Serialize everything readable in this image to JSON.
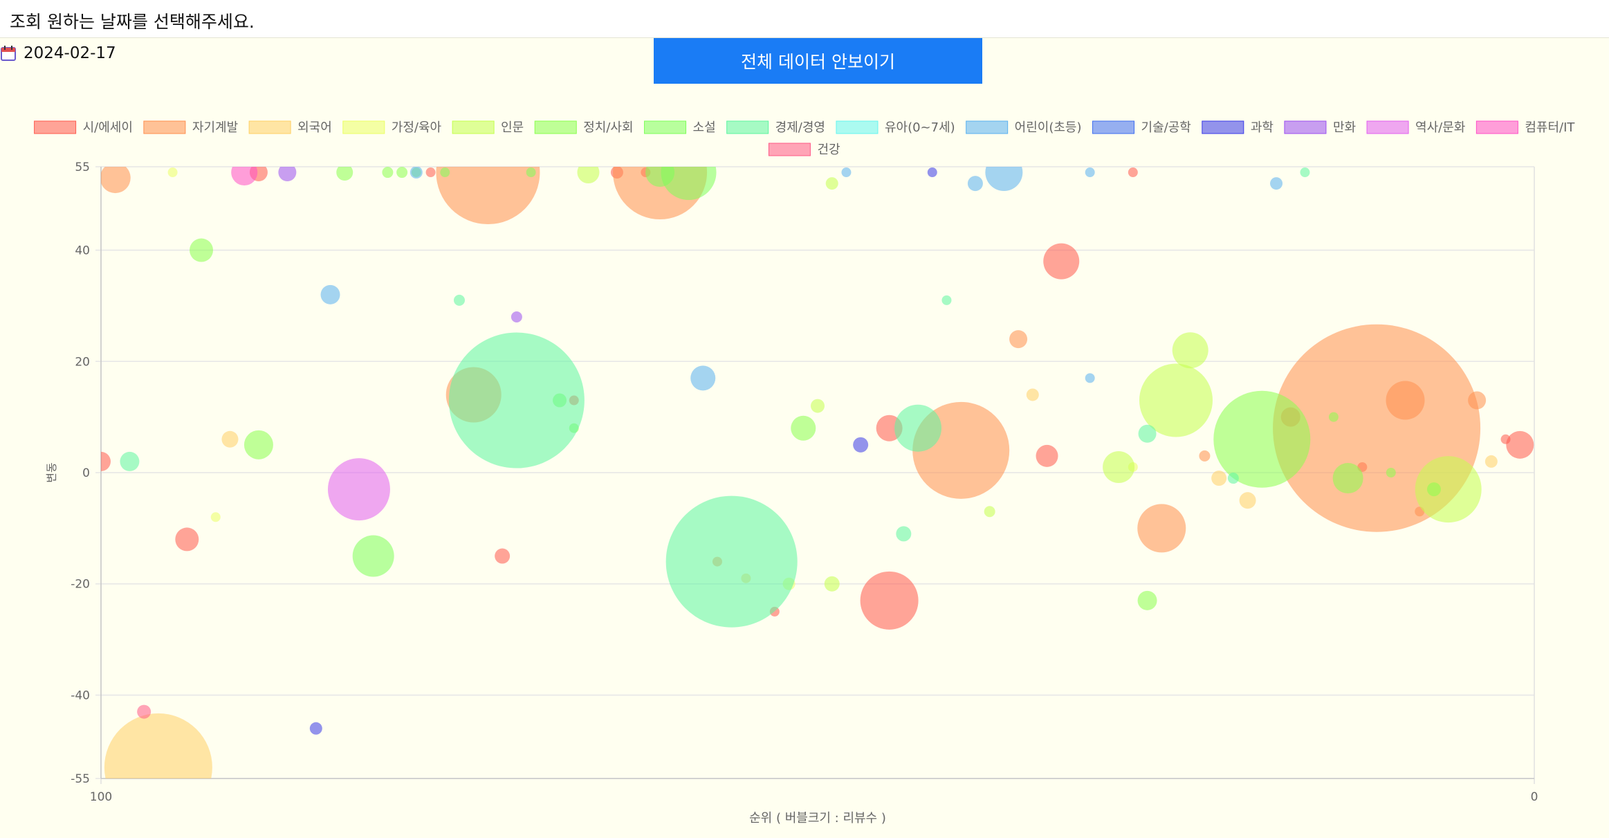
{
  "header": {
    "prompt": "조회 원하는 날짜를 선택해주세요."
  },
  "date_picker": {
    "value": "2024-02-17",
    "icon": "calendar-icon"
  },
  "toggle_button": {
    "label": "전체 데이터 안보이기"
  },
  "chart_data": {
    "type": "bubble",
    "xlabel": "순위 ( 버블크기 : 리뷰수 )",
    "ylabel": "변동",
    "xlim": [
      100,
      0
    ],
    "ylim": [
      -55,
      55
    ],
    "x_ticks": [
      100,
      0
    ],
    "y_ticks": [
      55,
      40,
      20,
      0,
      -20,
      -40,
      -55
    ],
    "grid": true,
    "legend_position": "top",
    "series": [
      {
        "name": "시/에세이",
        "color": "#ff5a4e",
        "points": [
          {
            "x": 100,
            "y": 2,
            "r": 14
          },
          {
            "x": 94,
            "y": -12,
            "r": 17
          },
          {
            "x": 89,
            "y": 54,
            "r": 13
          },
          {
            "x": 77,
            "y": 54,
            "r": 7
          },
          {
            "x": 72,
            "y": -15,
            "r": 11
          },
          {
            "x": 67,
            "y": 13,
            "r": 7
          },
          {
            "x": 64,
            "y": 54,
            "r": 9
          },
          {
            "x": 62,
            "y": 54,
            "r": 7
          },
          {
            "x": 53,
            "y": -25,
            "r": 7
          },
          {
            "x": 45,
            "y": -23,
            "r": 42
          },
          {
            "x": 45,
            "y": 8,
            "r": 19
          },
          {
            "x": 34,
            "y": 3,
            "r": 16
          },
          {
            "x": 33,
            "y": 38,
            "r": 26
          },
          {
            "x": 28,
            "y": 54,
            "r": 7
          },
          {
            "x": 17,
            "y": 10,
            "r": 14
          },
          {
            "x": 12,
            "y": 1,
            "r": 7
          },
          {
            "x": 2,
            "y": 6,
            "r": 7
          },
          {
            "x": 1,
            "y": 5,
            "r": 20
          }
        ]
      },
      {
        "name": "자기계발",
        "color": "#ff8f4f",
        "points": [
          {
            "x": 99,
            "y": 53,
            "r": 22
          },
          {
            "x": 74,
            "y": 14,
            "r": 40
          },
          {
            "x": 73,
            "y": 54,
            "r": 75
          },
          {
            "x": 61,
            "y": 54,
            "r": 68
          },
          {
            "x": 57,
            "y": -16,
            "r": 7
          },
          {
            "x": 40,
            "y": 4,
            "r": 70
          },
          {
            "x": 36,
            "y": 24,
            "r": 13
          },
          {
            "x": 26,
            "y": -10,
            "r": 35
          },
          {
            "x": 23,
            "y": 3,
            "r": 8
          },
          {
            "x": 11,
            "y": 8,
            "r": 150
          },
          {
            "x": 9,
            "y": 13,
            "r": 28
          },
          {
            "x": 8,
            "y": -7,
            "r": 7
          },
          {
            "x": 4,
            "y": 13,
            "r": 13
          }
        ]
      },
      {
        "name": "외국어",
        "color": "#ffd066",
        "points": [
          {
            "x": 96,
            "y": -53,
            "r": 78
          },
          {
            "x": 91,
            "y": 6,
            "r": 12
          },
          {
            "x": 55,
            "y": -19,
            "r": 7
          },
          {
            "x": 35,
            "y": 14,
            "r": 9
          },
          {
            "x": 22,
            "y": -1,
            "r": 11
          },
          {
            "x": 20,
            "y": -5,
            "r": 12
          },
          {
            "x": 3,
            "y": 2,
            "r": 9
          }
        ]
      },
      {
        "name": "가정/육아",
        "color": "#ebff66",
        "points": [
          {
            "x": 95,
            "y": 54,
            "r": 7
          },
          {
            "x": 92,
            "y": -8,
            "r": 7
          },
          {
            "x": 52,
            "y": -20,
            "r": 9
          },
          {
            "x": 28,
            "y": 1,
            "r": 7
          }
        ]
      },
      {
        "name": "인문",
        "color": "#c4ff4f",
        "points": [
          {
            "x": 66,
            "y": 54,
            "r": 16
          },
          {
            "x": 49,
            "y": -20,
            "r": 11
          },
          {
            "x": 50,
            "y": 12,
            "r": 10
          },
          {
            "x": 49,
            "y": 52,
            "r": 9
          },
          {
            "x": 38,
            "y": -7,
            "r": 8
          },
          {
            "x": 29,
            "y": 1,
            "r": 23
          },
          {
            "x": 25,
            "y": 13,
            "r": 53
          },
          {
            "x": 24,
            "y": 22,
            "r": 26
          },
          {
            "x": 6,
            "y": -3,
            "r": 48
          }
        ]
      },
      {
        "name": "정치/사회",
        "color": "#8bff4f",
        "points": [
          {
            "x": 93,
            "y": 40,
            "r": 17
          },
          {
            "x": 89,
            "y": 5,
            "r": 21
          },
          {
            "x": 83,
            "y": 54,
            "r": 12
          },
          {
            "x": 80,
            "y": 54,
            "r": 8
          },
          {
            "x": 79,
            "y": 54,
            "r": 8
          },
          {
            "x": 78,
            "y": 54,
            "r": 7
          },
          {
            "x": 67,
            "y": 8,
            "r": 7
          },
          {
            "x": 51,
            "y": 8,
            "r": 18
          },
          {
            "x": 27,
            "y": -23,
            "r": 14
          },
          {
            "x": 19,
            "y": 6,
            "r": 70
          },
          {
            "x": 14,
            "y": 10,
            "r": 7
          },
          {
            "x": 13,
            "y": -1,
            "r": 22
          },
          {
            "x": 10,
            "y": 0,
            "r": 7
          },
          {
            "x": 7,
            "y": -3,
            "r": 10
          }
        ]
      },
      {
        "name": "소설",
        "color": "#7dff5a",
        "points": [
          {
            "x": 81,
            "y": -15,
            "r": 30
          },
          {
            "x": 68,
            "y": 13,
            "r": 10
          },
          {
            "x": 61,
            "y": 54,
            "r": 21
          },
          {
            "x": 59,
            "y": 54,
            "r": 40
          },
          {
            "x": 76,
            "y": 54,
            "r": 7
          },
          {
            "x": 70,
            "y": 54,
            "r": 7
          }
        ]
      },
      {
        "name": "경제/경영",
        "color": "#5cf5a0",
        "points": [
          {
            "x": 98,
            "y": 2,
            "r": 14
          },
          {
            "x": 75,
            "y": 31,
            "r": 8
          },
          {
            "x": 71,
            "y": 13,
            "r": 98
          },
          {
            "x": 56,
            "y": -16,
            "r": 95
          },
          {
            "x": 44,
            "y": -11,
            "r": 11
          },
          {
            "x": 43,
            "y": 8,
            "r": 34
          },
          {
            "x": 41,
            "y": 31,
            "r": 7
          },
          {
            "x": 27,
            "y": 7,
            "r": 13
          },
          {
            "x": 21,
            "y": -1,
            "r": 8
          },
          {
            "x": 16,
            "y": 54,
            "r": 7
          }
        ]
      },
      {
        "name": "유아(0~7세)",
        "color": "#66f5f0",
        "points": []
      },
      {
        "name": "어린이(초등)",
        "color": "#5ab0f0",
        "points": [
          {
            "x": 84,
            "y": 32,
            "r": 14
          },
          {
            "x": 78,
            "y": 54,
            "r": 9
          },
          {
            "x": 58,
            "y": 17,
            "r": 18
          },
          {
            "x": 48,
            "y": 54,
            "r": 7
          },
          {
            "x": 39,
            "y": 52,
            "r": 11
          },
          {
            "x": 37,
            "y": 54,
            "r": 27
          },
          {
            "x": 31,
            "y": 17,
            "r": 7
          },
          {
            "x": 31,
            "y": 54,
            "r": 7
          },
          {
            "x": 18,
            "y": 52,
            "r": 9
          }
        ]
      },
      {
        "name": "기술/공학",
        "color": "#3f6ef0",
        "points": []
      },
      {
        "name": "과학",
        "color": "#3a3ae8",
        "points": [
          {
            "x": 85,
            "y": -46,
            "r": 9
          },
          {
            "x": 47,
            "y": 5,
            "r": 11
          },
          {
            "x": 42,
            "y": 54,
            "r": 7
          }
        ]
      },
      {
        "name": "만화",
        "color": "#9b4ff0",
        "points": [
          {
            "x": 87,
            "y": 54,
            "r": 13
          },
          {
            "x": 71,
            "y": 28,
            "r": 8
          }
        ]
      },
      {
        "name": "역사/문화",
        "color": "#e25ff0",
        "points": [
          {
            "x": 82,
            "y": -3,
            "r": 45
          }
        ]
      },
      {
        "name": "컴퓨터/IT",
        "color": "#ff4fc7",
        "points": [
          {
            "x": 90,
            "y": 54,
            "r": 19
          }
        ]
      },
      {
        "name": "건강",
        "color": "#ff5a87",
        "points": [
          {
            "x": 97,
            "y": -43,
            "r": 10
          }
        ]
      }
    ]
  }
}
